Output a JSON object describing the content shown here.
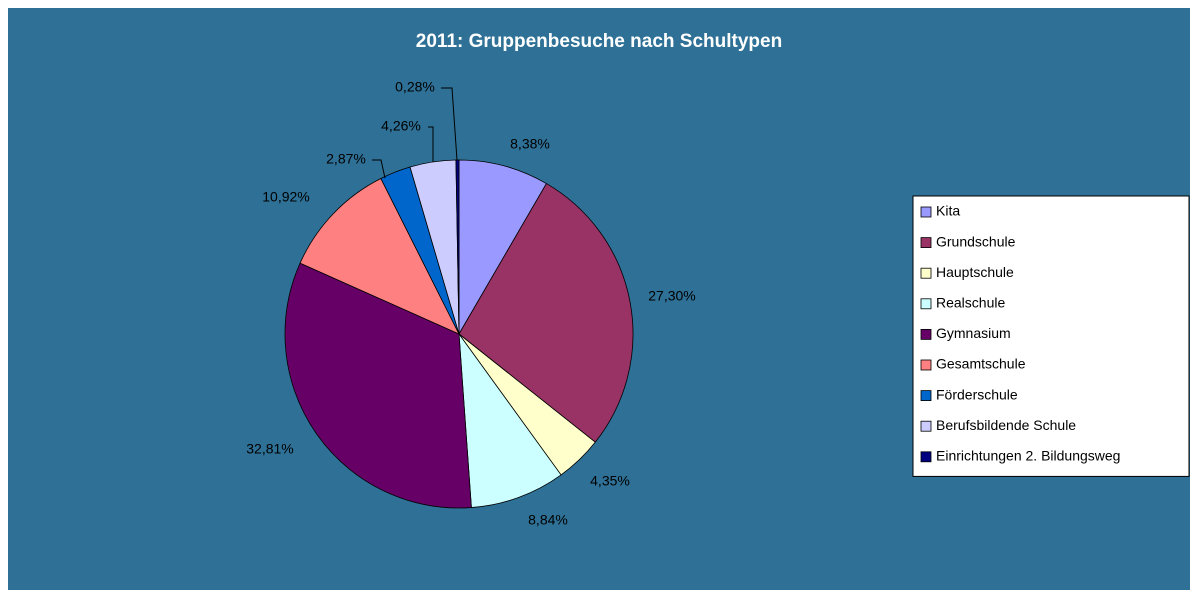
{
  "chart_data": {
    "type": "pie",
    "title": "2011: Gruppenbesuche nach Schultypen",
    "categories": [
      "Kita",
      "Grundschule",
      "Hauptschule",
      "Realschule",
      "Gymnasium",
      "Gesamtschule",
      "Förderschule",
      "Berufsbildende Schule",
      "Einrichtungen 2. Bildungsweg"
    ],
    "values": [
      8.38,
      27.3,
      4.35,
      8.84,
      32.81,
      10.92,
      2.87,
      4.26,
      0.28
    ],
    "value_labels": [
      "8,38%",
      "27,30%",
      "4,35%",
      "8,84%",
      "32,81%",
      "10,92%",
      "2,87%",
      "4,26%",
      "0,28%"
    ],
    "colors": [
      "#9999ff",
      "#993366",
      "#ffffcc",
      "#ccffff",
      "#660066",
      "#ff8080",
      "#0066cc",
      "#ccccff",
      "#000080"
    ],
    "legend": "right"
  }
}
